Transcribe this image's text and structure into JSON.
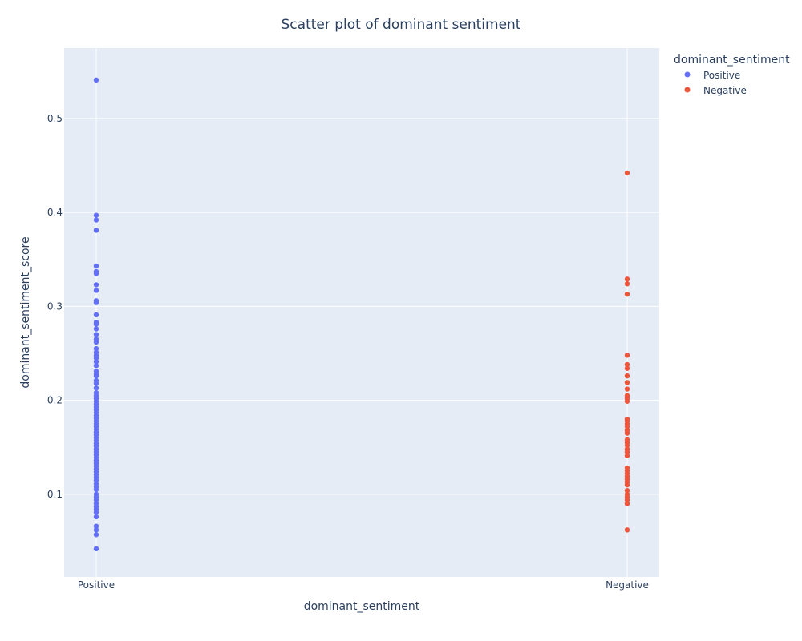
{
  "chart_data": {
    "type": "scatter",
    "title": "Scatter plot of dominant sentiment",
    "xlabel": "dominant_sentiment",
    "ylabel": "dominant_sentiment_score",
    "categories": [
      "Positive",
      "Negative"
    ],
    "ylim": [
      0.012,
      0.575
    ],
    "yticks": [
      0.1,
      0.2,
      0.3,
      0.4,
      0.5
    ],
    "ytick_labels": [
      "0.1",
      "0.2",
      "0.3",
      "0.4",
      "0.5"
    ],
    "grid": true,
    "legend": {
      "title": "dominant_sentiment",
      "position": "top-right, outside plot"
    },
    "series": [
      {
        "name": "Positive",
        "color": "#636EFA",
        "x": "Positive",
        "values": [
          0.541,
          0.397,
          0.392,
          0.381,
          0.343,
          0.337,
          0.335,
          0.323,
          0.317,
          0.306,
          0.304,
          0.291,
          0.283,
          0.281,
          0.276,
          0.27,
          0.265,
          0.262,
          0.255,
          0.251,
          0.248,
          0.245,
          0.241,
          0.237,
          0.231,
          0.228,
          0.226,
          0.221,
          0.218,
          0.213,
          0.208,
          0.205,
          0.202,
          0.199,
          0.196,
          0.193,
          0.19,
          0.187,
          0.184,
          0.181,
          0.178,
          0.175,
          0.172,
          0.169,
          0.166,
          0.163,
          0.16,
          0.157,
          0.154,
          0.151,
          0.148,
          0.145,
          0.142,
          0.139,
          0.136,
          0.133,
          0.13,
          0.127,
          0.124,
          0.121,
          0.118,
          0.115,
          0.111,
          0.108,
          0.105,
          0.1,
          0.097,
          0.094,
          0.09,
          0.087,
          0.084,
          0.081,
          0.076,
          0.066,
          0.062,
          0.057,
          0.042
        ]
      },
      {
        "name": "Negative",
        "color": "#EF553B",
        "x": "Negative",
        "values": [
          0.442,
          0.329,
          0.324,
          0.313,
          0.248,
          0.238,
          0.234,
          0.226,
          0.219,
          0.212,
          0.205,
          0.202,
          0.199,
          0.18,
          0.178,
          0.175,
          0.172,
          0.168,
          0.165,
          0.158,
          0.155,
          0.152,
          0.148,
          0.145,
          0.141,
          0.128,
          0.125,
          0.122,
          0.119,
          0.116,
          0.113,
          0.11,
          0.104,
          0.1,
          0.097,
          0.094,
          0.09,
          0.062
        ]
      }
    ]
  }
}
